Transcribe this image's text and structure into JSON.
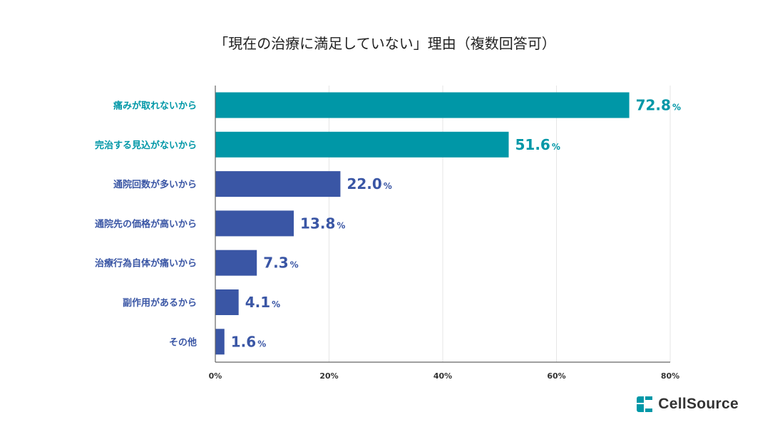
{
  "chart_data": {
    "type": "bar",
    "orientation": "horizontal",
    "title": "「現在の治療に満足していない」理由（複数回答可）",
    "categories": [
      "痛みが取れないから",
      "完治する見込がないから",
      "通院回数が多いから",
      "通院先の価格が高いから",
      "治療行為自体が痛いから",
      "副作用があるから",
      "その他"
    ],
    "values": [
      72.8,
      51.6,
      22.0,
      13.8,
      7.3,
      4.1,
      1.6
    ],
    "value_labels": [
      "72.8",
      "51.6",
      "22.0",
      "13.8",
      "7.3",
      "4.1",
      "1.6"
    ],
    "unit": "%",
    "xlim": [
      0,
      80
    ],
    "xticks": [
      0,
      20,
      40,
      60,
      80
    ],
    "xtick_labels": [
      "0%",
      "20%",
      "40%",
      "60%",
      "80%"
    ],
    "grid": true,
    "colors": [
      "#0097a7",
      "#0097a7",
      "#3a56a5",
      "#3a56a5",
      "#3a56a5",
      "#3a56a5",
      "#3a56a5"
    ]
  },
  "brand": {
    "name": "CellSource",
    "color": "#0097a7",
    "logo_icon": "cellsource-logo-icon"
  }
}
